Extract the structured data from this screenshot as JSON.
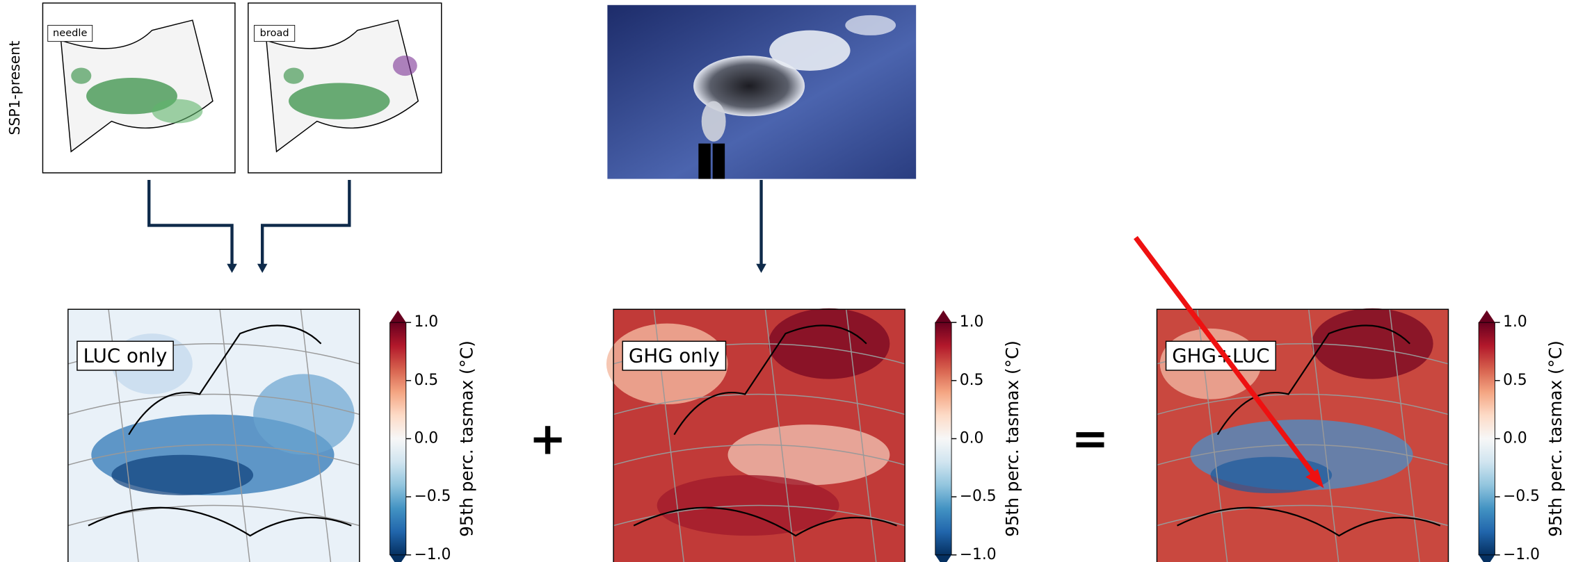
{
  "inputs": {
    "row_label": "SSP1-present",
    "maps": [
      "needle",
      "broad"
    ]
  },
  "panels": [
    {
      "label": "LUC only"
    },
    {
      "label": "GHG only"
    },
    {
      "label": "GHG+LUC"
    }
  ],
  "operators": [
    "+",
    "="
  ],
  "colorbar": {
    "label": "95th perc. tasmax (°C)",
    "range": [
      -1,
      1
    ],
    "ticks": [
      {
        "value": 1,
        "label": "1.0"
      },
      {
        "value": 0.5,
        "label": "0.5"
      },
      {
        "value": 0,
        "label": "0.0"
      },
      {
        "value": -0.5,
        "label": "−0.5"
      },
      {
        "value": -1,
        "label": "−1.0"
      }
    ]
  }
}
